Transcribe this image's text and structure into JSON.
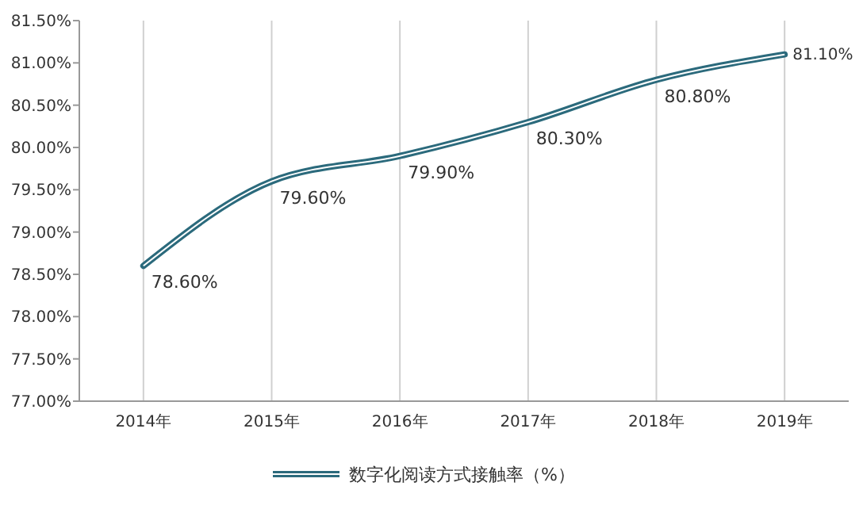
{
  "chart_data": {
    "type": "line",
    "categories": [
      "2014年",
      "2015年",
      "2016年",
      "2017年",
      "2018年",
      "2019年"
    ],
    "series": [
      {
        "name": "数字化阅读方式接触率（%）",
        "color": "#2b6a7c",
        "values": [
          78.6,
          79.6,
          79.9,
          80.3,
          80.8,
          81.1
        ],
        "value_labels": [
          "78.60%",
          "79.60%",
          "79.90%",
          "80.30%",
          "80.80%",
          "81.10%"
        ]
      }
    ],
    "ylim": [
      77,
      81.5
    ],
    "yticks": [
      {
        "value": 77,
        "label": "77.00%"
      },
      {
        "value": 77.5,
        "label": "77.50%"
      },
      {
        "value": 78,
        "label": "78.00%"
      },
      {
        "value": 78.5,
        "label": "78.50%"
      },
      {
        "value": 79,
        "label": "79.00%"
      },
      {
        "value": 79.5,
        "label": "79.50%"
      },
      {
        "value": 80,
        "label": "80.00%"
      },
      {
        "value": 80.5,
        "label": "80.50%"
      },
      {
        "value": 81,
        "label": "81.00%"
      },
      {
        "value": 81.5,
        "label": "81.50%"
      }
    ],
    "grid": "x",
    "legend": "bottom",
    "line_style": "solid",
    "marker": "none"
  }
}
